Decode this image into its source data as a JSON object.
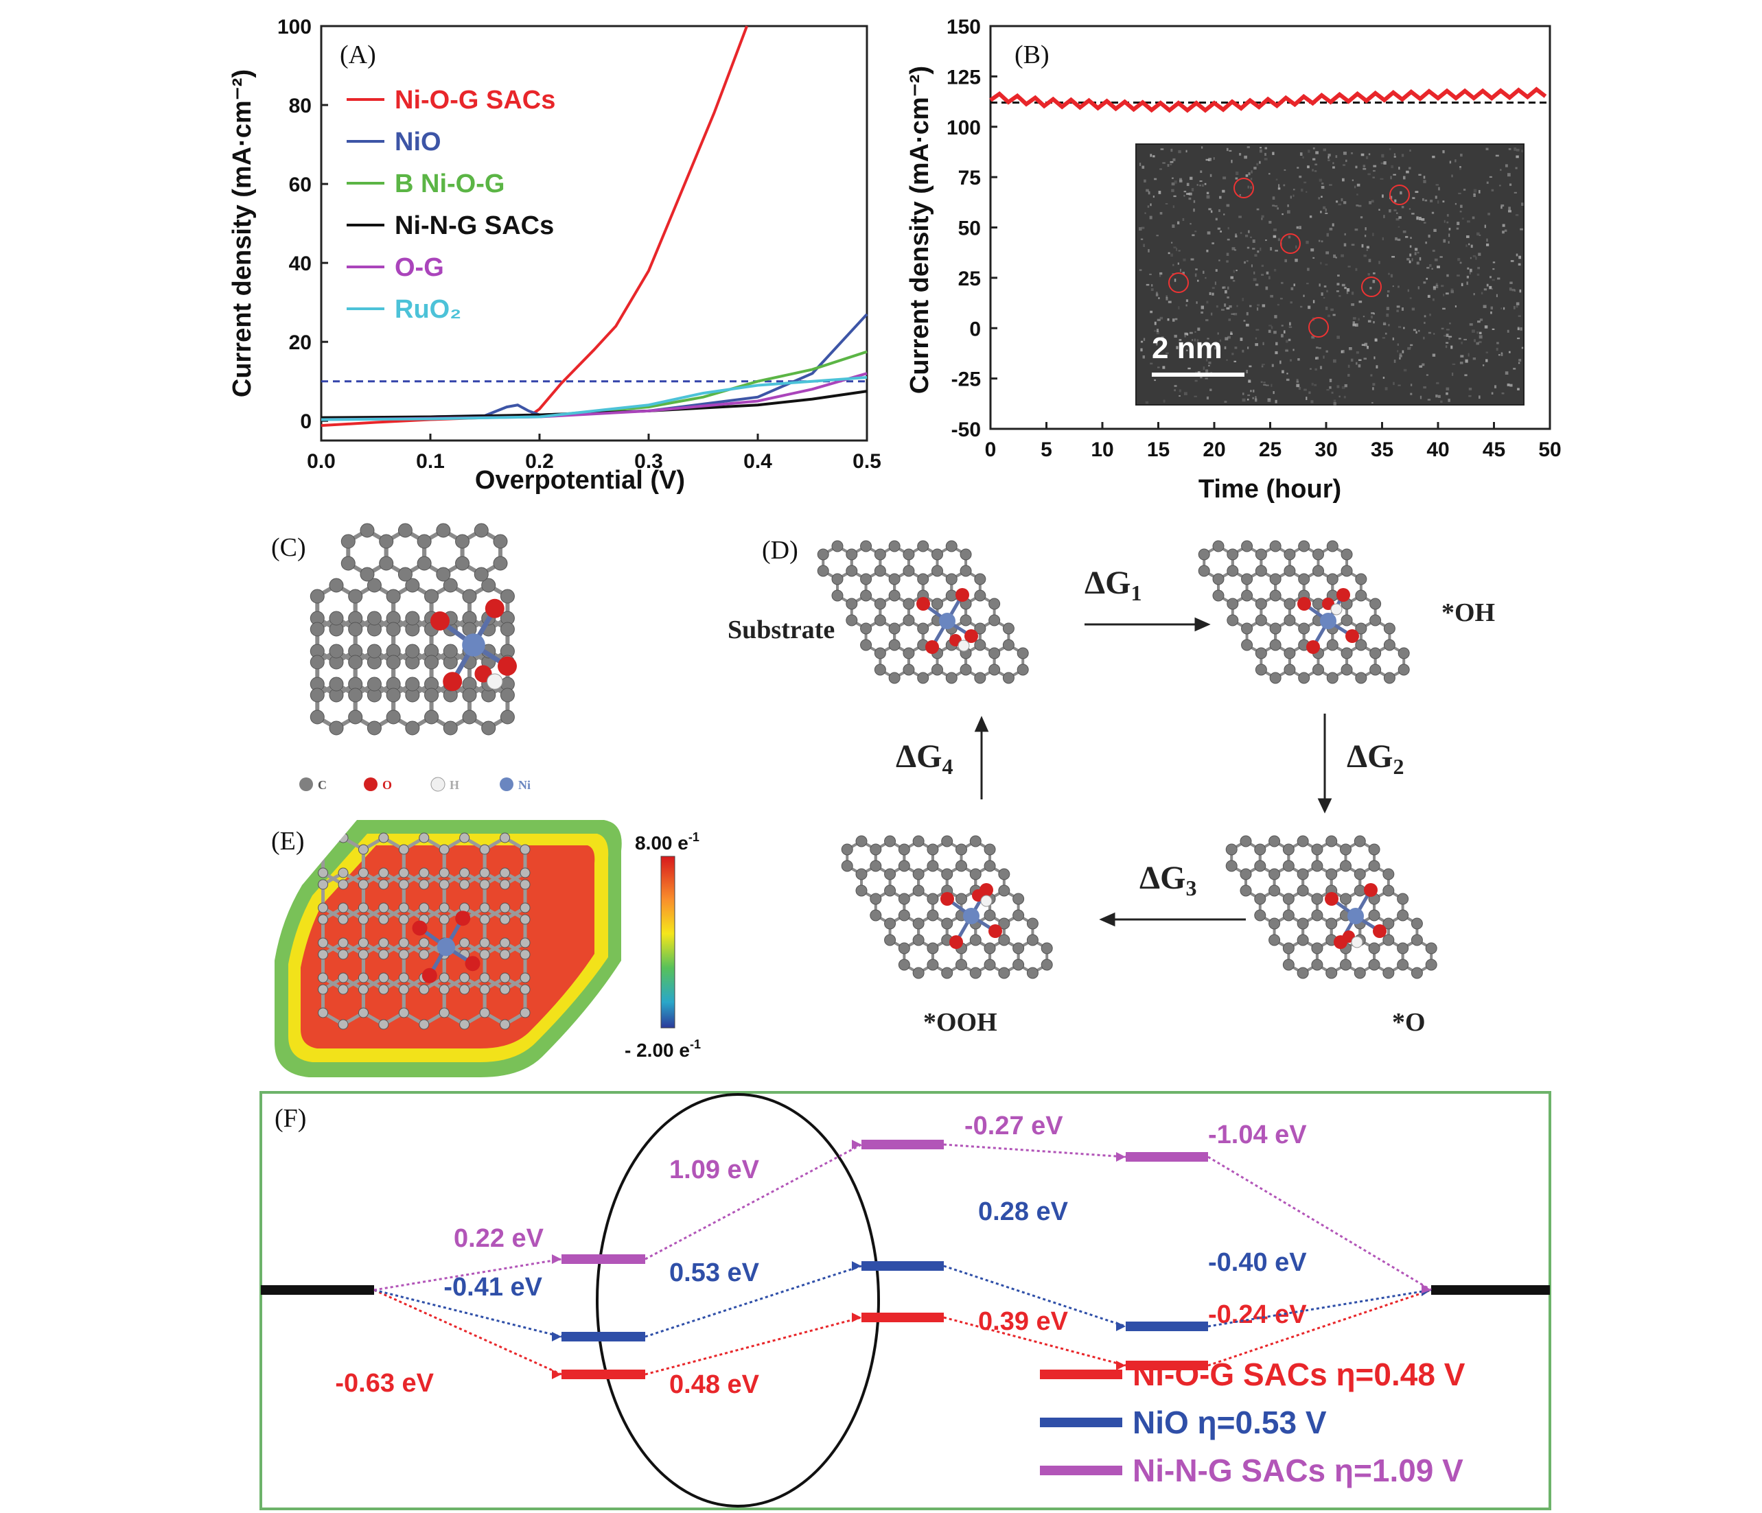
{
  "panels": {
    "A": "(A)",
    "B": "(B)",
    "C": "(C)",
    "D": "(D)",
    "E": "(E)",
    "F": "(F)"
  },
  "chart_data": [
    {
      "panel": "A",
      "type": "line",
      "xlabel": "Overpotential (V)",
      "ylabel": "Current density (mA·cm⁻²)",
      "xlim": [
        0.0,
        0.5
      ],
      "ylim": [
        -5,
        100
      ],
      "xticks": [
        "0.0",
        "0.1",
        "0.2",
        "0.3",
        "0.4",
        "0.5"
      ],
      "yticks": [
        "0",
        "20",
        "40",
        "60",
        "80",
        "100"
      ],
      "reference_line": {
        "y": 10,
        "style": "dashed",
        "color": "#3344aa"
      },
      "legend_position": "top-left",
      "series": [
        {
          "name": "Ni-O-G SACs",
          "color": "#e8262a",
          "x": [
            0.0,
            0.05,
            0.1,
            0.15,
            0.19,
            0.2,
            0.22,
            0.25,
            0.27,
            0.3,
            0.33,
            0.36,
            0.39
          ],
          "y": [
            -1.2,
            -0.4,
            0.3,
            0.8,
            1.0,
            3.0,
            9.5,
            18.0,
            24.0,
            38.0,
            58.0,
            78.0,
            100.0
          ]
        },
        {
          "name": "NiO",
          "color": "#3d55a6",
          "x": [
            0.0,
            0.1,
            0.15,
            0.17,
            0.18,
            0.19,
            0.2,
            0.3,
            0.4,
            0.45,
            0.5
          ],
          "y": [
            0.5,
            1.0,
            1.3,
            3.5,
            4.0,
            2.5,
            1.5,
            2.5,
            6.0,
            12.0,
            27.0
          ]
        },
        {
          "name": "B Ni-O-G",
          "color": "#5bb545",
          "x": [
            0.0,
            0.1,
            0.2,
            0.3,
            0.35,
            0.4,
            0.45,
            0.5
          ],
          "y": [
            0.5,
            0.8,
            1.2,
            3.5,
            6.0,
            10.0,
            13.0,
            17.5
          ]
        },
        {
          "name": "Ni-N-G SACs",
          "color": "#111111",
          "x": [
            0.0,
            0.1,
            0.2,
            0.3,
            0.4,
            0.45,
            0.5
          ],
          "y": [
            0.8,
            1.0,
            1.5,
            2.5,
            4.0,
            5.5,
            7.5
          ]
        },
        {
          "name": "O-G",
          "color": "#aa44bb",
          "x": [
            0.0,
            0.1,
            0.2,
            0.3,
            0.4,
            0.45,
            0.5
          ],
          "y": [
            0.3,
            0.6,
            1.0,
            2.5,
            5.0,
            8.0,
            12.0
          ]
        },
        {
          "name": "RuO₂",
          "color": "#4cc2d8",
          "x": [
            0.0,
            0.1,
            0.2,
            0.3,
            0.35,
            0.4,
            0.45,
            0.5
          ],
          "y": [
            0.3,
            0.5,
            1.0,
            4.0,
            7.0,
            9.0,
            10.0,
            11.0
          ]
        }
      ]
    },
    {
      "panel": "B",
      "type": "line",
      "xlabel": "Time (hour)",
      "ylabel": "Current density (mA·cm⁻²)",
      "xlim": [
        0,
        50
      ],
      "ylim": [
        -50,
        150
      ],
      "xticks": [
        "0",
        "5",
        "10",
        "15",
        "20",
        "25",
        "30",
        "35",
        "40",
        "45",
        "50"
      ],
      "yticks": [
        "-50",
        "-25",
        "0",
        "25",
        "50",
        "75",
        "100",
        "125",
        "150"
      ],
      "reference_line": {
        "y": 112,
        "style": "dashed",
        "color": "#111111"
      },
      "series": [
        {
          "color": "#e8262a",
          "x": [
            0,
            5,
            10,
            15,
            20,
            25,
            30,
            35,
            40,
            45,
            50
          ],
          "y": [
            115,
            112,
            111,
            110,
            110,
            112,
            114,
            115,
            116,
            116,
            117
          ]
        }
      ],
      "inset_scale_label": "2 nm"
    },
    {
      "panel": "F",
      "type": "energy-diagram",
      "steps": 5,
      "series": [
        {
          "name": "Ni-O-G SACs η=0.48 V",
          "color": "#e8262a",
          "energy_changes": [
            "-0.63 eV",
            "0.48 eV",
            "0.39 eV",
            "-0.24 eV"
          ]
        },
        {
          "name": "NiO η=0.53 V",
          "color": "#2f4fa8",
          "energy_changes": [
            "-0.41 eV",
            "0.53 eV",
            "0.28 eV",
            "-0.40 eV"
          ]
        },
        {
          "name": "Ni-N-G SACs η=1.09 V",
          "color": "#b255b8",
          "energy_changes": [
            "0.22 eV",
            "1.09 eV",
            "-0.27 eV",
            "-1.04 eV"
          ]
        }
      ]
    }
  ],
  "atom_legend": {
    "C": "C",
    "O": "O",
    "H": "H",
    "Ni": "Ni"
  },
  "cycle": {
    "substrate": "Substrate",
    "oh": "*OH",
    "o": "*O",
    "ooh": "*OOH",
    "dg1": "ΔG",
    "dg1_sub": "1",
    "dg2": "ΔG",
    "dg2_sub": "2",
    "dg3": "ΔG",
    "dg3_sub": "3",
    "dg4": "ΔG",
    "dg4_sub": "4"
  },
  "colorbar": {
    "max_label": "8.00 e",
    "max_exp": "-1",
    "min_label": "- 2.00 e",
    "min_exp": "-1"
  },
  "colors": {
    "carbon": "#808080",
    "oxygen": "#d42020",
    "hydrogen": "#f0f0f0",
    "nickel": "#6a86c0",
    "frame_green": "#6db36a"
  }
}
